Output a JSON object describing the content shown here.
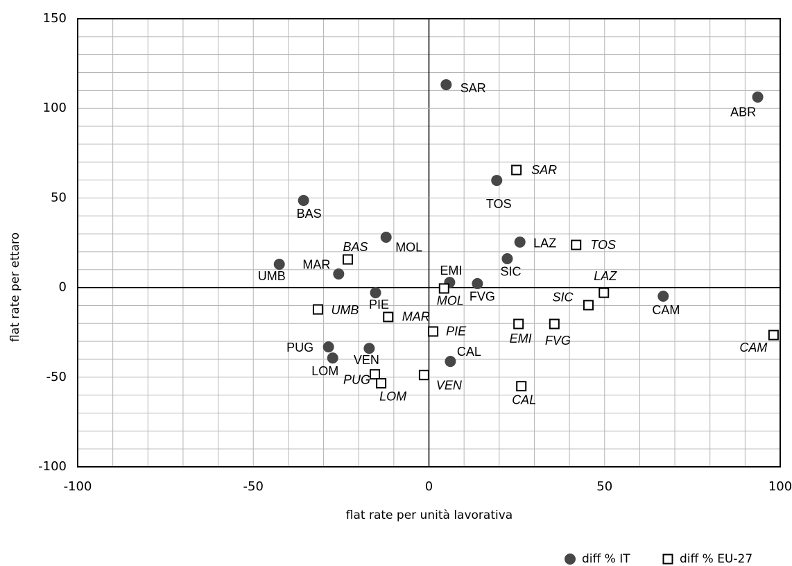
{
  "chart_data": {
    "type": "scatter",
    "x_label": "flat rate per unità lavorativa",
    "y_label": "flat rate per ettaro",
    "xlim": [
      -100,
      100
    ],
    "ylim": [
      -100,
      150
    ],
    "xticks": [
      -100,
      -50,
      0,
      50,
      100
    ],
    "yticks": [
      -100,
      -50,
      0,
      50,
      100,
      150
    ],
    "grid": true,
    "legend": "bottom-right",
    "series": [
      {
        "name": "diff % IT",
        "marker": "circle",
        "color": "#474747",
        "label_style": "normal",
        "labels": [
          "SAR",
          "ABR",
          "TOS",
          "BAS",
          "MOL",
          "LAZ",
          "SIC",
          "UMB",
          "MAR",
          "EMI",
          "FVG",
          "PIE",
          "CAM",
          "PUG",
          "VEN",
          "LOM",
          "CAL"
        ],
        "x": [
          4.9,
          93.6,
          19.3,
          -35.7,
          -12.2,
          25.9,
          22.3,
          -42.6,
          -25.7,
          5.9,
          13.8,
          -15.2,
          66.7,
          -28.6,
          -17.0,
          -27.4,
          6.1
        ],
        "values": [
          113.2,
          106.3,
          59.8,
          48.6,
          28.1,
          25.4,
          16.1,
          13.0,
          7.6,
          2.9,
          2.2,
          -2.9,
          -4.8,
          -33.1,
          -33.9,
          -39.3,
          -41.2
        ]
      },
      {
        "name": "diff % EU-27",
        "marker": "square",
        "color": "#000000",
        "label_style": "italic",
        "labels": [
          "SAR",
          "TOS",
          "BAS",
          "LAZ",
          "MOL",
          "SIC",
          "UMB",
          "MAR",
          "PIE",
          "EMI",
          "FVG",
          "CAM",
          "PUG",
          "LOM",
          "VEN",
          "CAL"
        ],
        "x": [
          24.9,
          41.9,
          -23.1,
          49.8,
          4.3,
          45.4,
          -31.6,
          -11.6,
          1.2,
          25.5,
          35.7,
          98.1,
          -15.4,
          -13.6,
          -1.4,
          26.3
        ],
        "values": [
          65.6,
          23.8,
          15.7,
          -2.9,
          -0.5,
          -9.8,
          -12.2,
          -16.4,
          -24.5,
          -20.3,
          -20.3,
          -26.5,
          -48.4,
          -53.4,
          -48.8,
          -55.0
        ]
      }
    ]
  }
}
